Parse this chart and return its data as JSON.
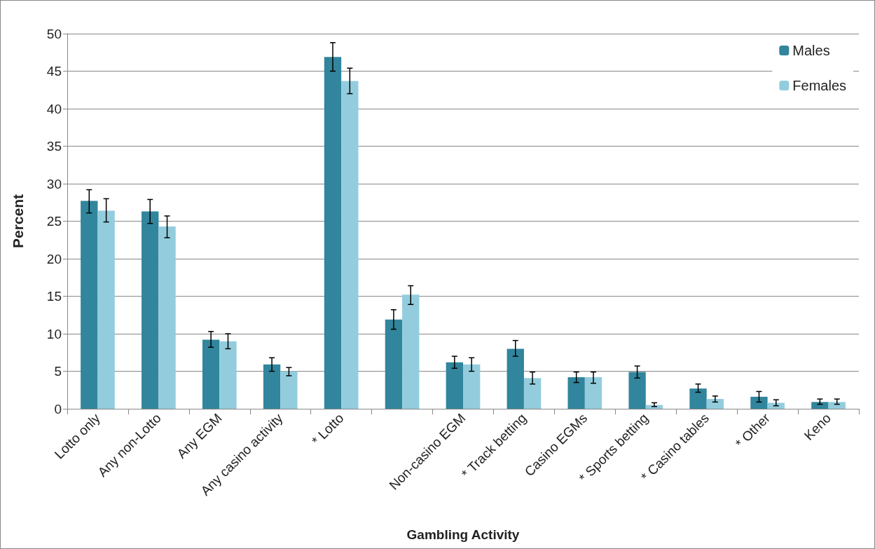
{
  "chart_data": {
    "type": "bar",
    "xlabel": "Gambling Activity",
    "ylabel": "Percent",
    "categories": [
      "Lotto only",
      "Any non-Lotto",
      "Any EGM",
      "Any casino activity",
      "* Lotto",
      null,
      "Non-casino EGM",
      "* Track betting",
      "Casino EGMs",
      "* Sports betting",
      "* Casino tables",
      "* Other",
      "Keno"
    ],
    "series": [
      {
        "name": "Males",
        "color": "#31859c",
        "values": [
          27.7,
          26.3,
          9.2,
          5.9,
          46.9,
          11.9,
          6.2,
          8.0,
          4.2,
          4.9,
          2.7,
          1.6,
          0.9
        ],
        "errors": [
          [
            26.1,
            29.2
          ],
          [
            24.7,
            27.9
          ],
          [
            8.2,
            10.3
          ],
          [
            5.0,
            6.8
          ],
          [
            45.0,
            48.8
          ],
          [
            10.6,
            13.2
          ],
          [
            5.4,
            7.0
          ],
          [
            7.0,
            9.1
          ],
          [
            3.5,
            4.9
          ],
          [
            4.1,
            5.7
          ],
          [
            2.2,
            3.3
          ],
          [
            0.9,
            2.3
          ],
          [
            0.6,
            1.3
          ]
        ]
      },
      {
        "name": "Females",
        "color": "#93cddd",
        "values": [
          26.4,
          24.3,
          9.0,
          5.0,
          43.7,
          15.2,
          5.9,
          4.1,
          4.2,
          0.5,
          1.3,
          0.8,
          0.9
        ],
        "errors": [
          [
            24.9,
            28.0
          ],
          [
            22.8,
            25.7
          ],
          [
            8.0,
            10.0
          ],
          [
            4.4,
            5.5
          ],
          [
            42.0,
            45.4
          ],
          [
            13.9,
            16.4
          ],
          [
            5.0,
            6.8
          ],
          [
            3.3,
            4.9
          ],
          [
            3.4,
            4.9
          ],
          [
            0.3,
            0.8
          ],
          [
            0.9,
            1.7
          ],
          [
            0.4,
            1.2
          ],
          [
            0.6,
            1.3
          ]
        ]
      }
    ],
    "ylim": [
      0,
      50
    ],
    "yticks": [
      0,
      5,
      10,
      15,
      20,
      25,
      30,
      35,
      40,
      45,
      50
    ],
    "grid": "y",
    "legend": "top right"
  }
}
